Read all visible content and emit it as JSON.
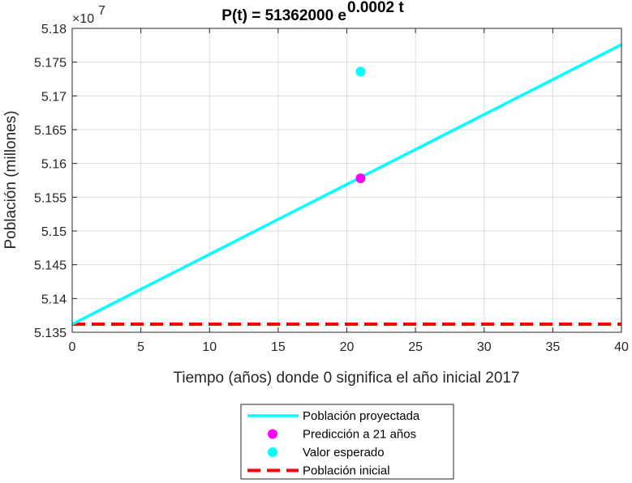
{
  "chart_data": {
    "type": "line",
    "title": "P(t) = 51362000 e",
    "title_exponent": "0.0002 t",
    "xlabel": "Tiempo (años) donde 0 significa el año inicial 2017",
    "ylabel": "Población (millones)",
    "xlim": [
      0,
      40
    ],
    "ylim": [
      51350000,
      51800000
    ],
    "y_multiplier": "×10",
    "y_multiplier_exp": "7",
    "x_ticks": [
      "0",
      "5",
      "10",
      "15",
      "20",
      "25",
      "30",
      "35",
      "40"
    ],
    "y_ticks": [
      "5.135",
      "5.14",
      "5.145",
      "5.15",
      "5.155",
      "5.16",
      "5.165",
      "5.17",
      "5.175",
      "5.18"
    ],
    "grid": true,
    "legend_position": "bottom-outside",
    "series": [
      {
        "name": "Población proyectada",
        "kind": "line",
        "color": "#00FFFF",
        "x": [
          0,
          40
        ],
        "y": [
          51362000,
          51776000
        ]
      },
      {
        "name": "Predicción a 21 años",
        "kind": "point",
        "color": "#FF00FF",
        "x": [
          21
        ],
        "y": [
          51578000
        ]
      },
      {
        "name": "Valor esperado",
        "kind": "point",
        "color": "#00FFFF",
        "x": [
          21
        ],
        "y": [
          51736000
        ]
      },
      {
        "name": "Población inicial",
        "kind": "dashed",
        "color": "#FF0000",
        "x": [
          0,
          40
        ],
        "y": [
          51362000,
          51362000
        ]
      }
    ]
  }
}
